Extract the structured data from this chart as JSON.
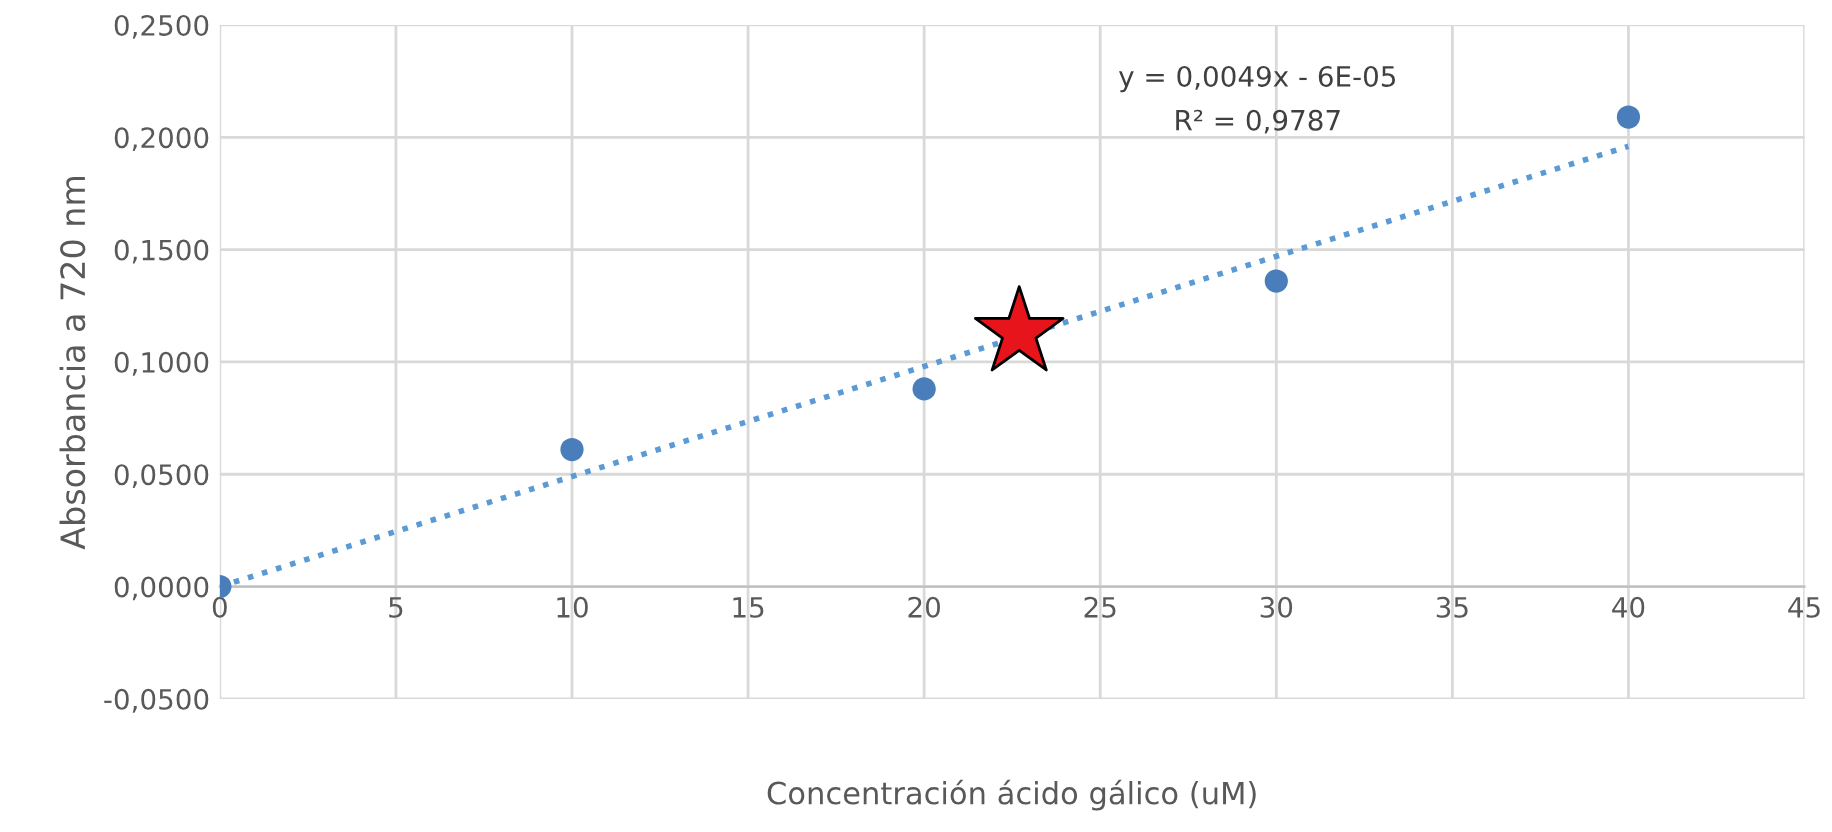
{
  "chart_data": {
    "type": "scatter",
    "xlabel": "Concentración ácido gálico (uM)",
    "ylabel": "Absorbancia a 720 nm",
    "xlim": [
      0,
      45
    ],
    "xticks": [
      0,
      5,
      10,
      15,
      20,
      25,
      30,
      35,
      40,
      45
    ],
    "ylim": [
      -0.05,
      0.25
    ],
    "yticks": [
      {
        "value": -0.05,
        "label": "-0,0500"
      },
      {
        "value": 0,
        "label": "0,0000"
      },
      {
        "value": 0.05,
        "label": "0,0500"
      },
      {
        "value": 0.1,
        "label": "0,1000"
      },
      {
        "value": 0.15,
        "label": "0,1500"
      },
      {
        "value": 0.2,
        "label": "0,2000"
      },
      {
        "value": 0.25,
        "label": "0,2500"
      }
    ],
    "grid": true,
    "series": [
      {
        "type": "line",
        "color": "#5b9bd5",
        "line_style": "dotted",
        "marker": "none",
        "x": [
          0,
          40
        ],
        "values": [
          0.0,
          0.196
        ]
      },
      {
        "color": "#4a7ebb",
        "marker": "circle",
        "x": [
          0,
          10,
          20,
          30,
          40
        ],
        "values": [
          0.0,
          0.061,
          0.088,
          0.136,
          0.209
        ]
      },
      {
        "color": "#e8141c",
        "marker": "star",
        "x": [
          22.7
        ],
        "values": [
          0.113
        ]
      }
    ],
    "annotations": [
      "y = 0,0049x - 6E-05",
      "R² = 0,9787"
    ]
  }
}
